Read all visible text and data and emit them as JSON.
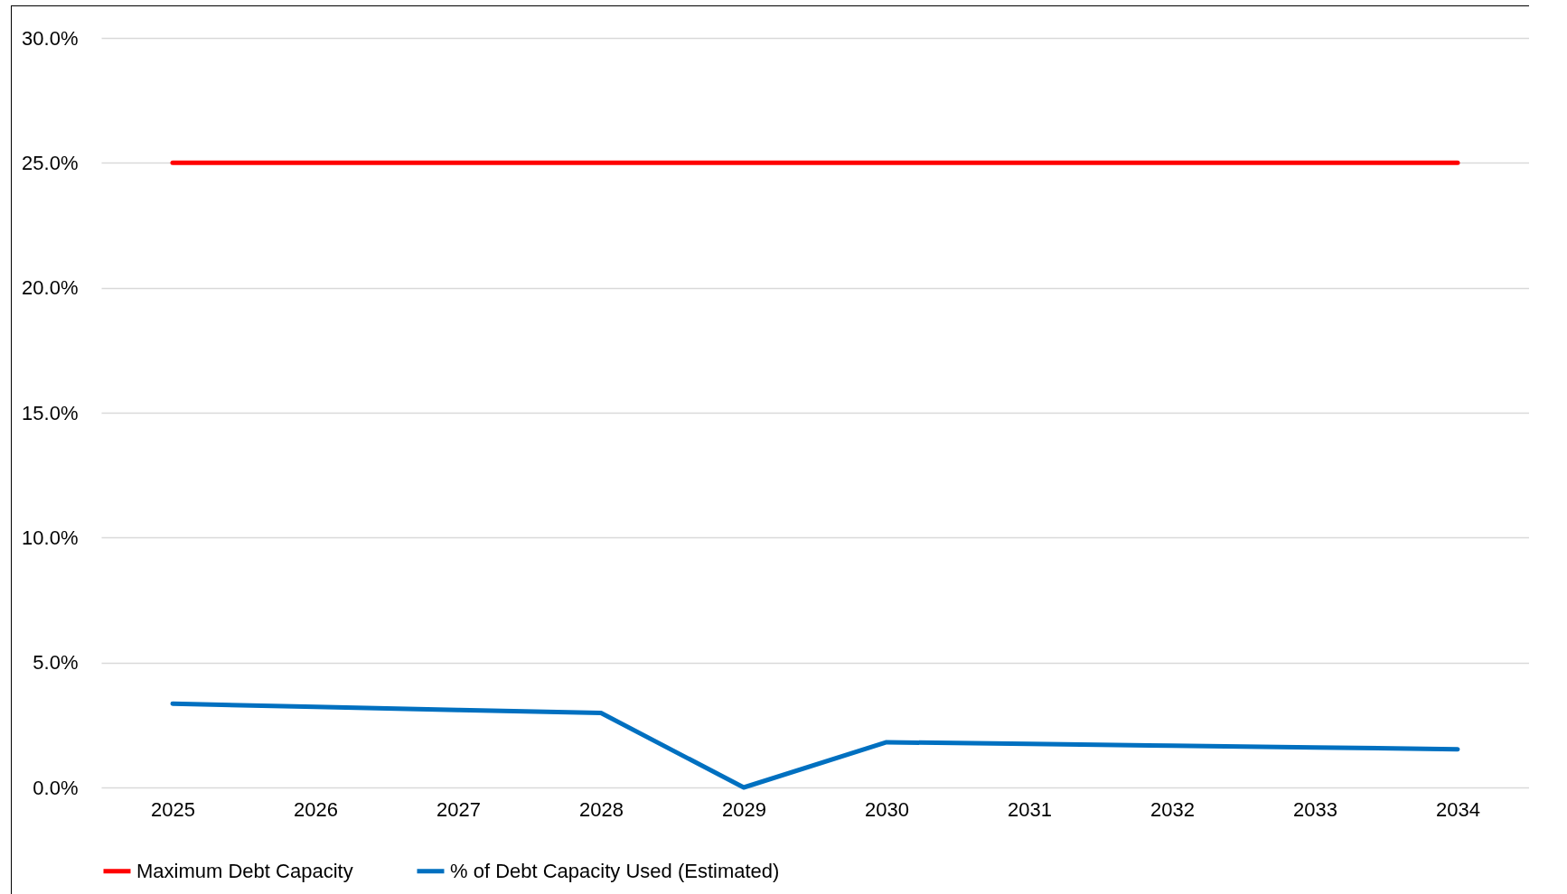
{
  "chart_data": {
    "type": "line",
    "categories": [
      "2025",
      "2026",
      "2027",
      "2028",
      "2029",
      "2030",
      "2031",
      "2032",
      "2033",
      "2034"
    ],
    "series": [
      {
        "name": "Maximum Debt Capacity",
        "color": "#ff0000",
        "values": [
          25,
          25,
          25,
          25,
          25,
          25,
          25,
          25,
          25,
          25
        ]
      },
      {
        "name": "% of Debt Capacity Used (Estimated)",
        "color": "#0070c0",
        "values": [
          3.35,
          3.23,
          3.1,
          2.98,
          0,
          1.81,
          1.74,
          1.67,
          1.6,
          1.53
        ]
      }
    ],
    "ylim": [
      0,
      30
    ],
    "yticks": [
      {
        "value": 0,
        "label": "0.0%"
      },
      {
        "value": 5,
        "label": "5.0%"
      },
      {
        "value": 10,
        "label": "10.0%"
      },
      {
        "value": 15,
        "label": "15.0%"
      },
      {
        "value": 20,
        "label": "20.0%"
      },
      {
        "value": 25,
        "label": "25.0%"
      },
      {
        "value": 30,
        "label": "30.0%"
      }
    ],
    "grid": "y",
    "legend": "bottom",
    "marker": "none",
    "line_style": "solid"
  }
}
